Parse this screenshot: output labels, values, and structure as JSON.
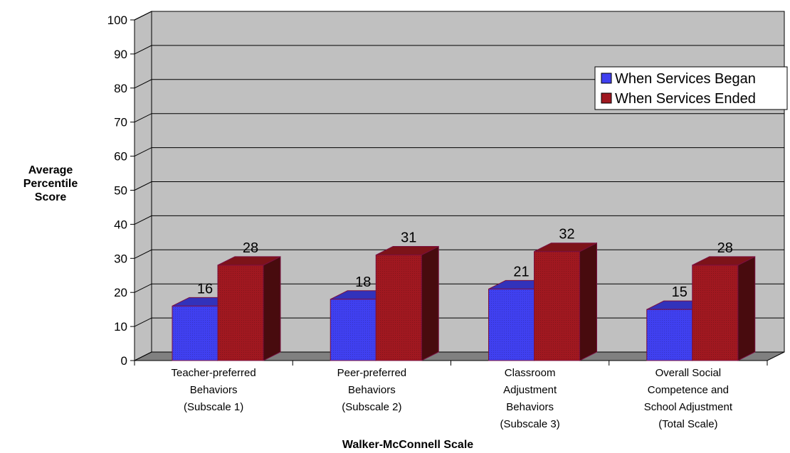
{
  "chart_data": {
    "type": "bar",
    "style": "3d-clustered-column",
    "categories": [
      [
        "Teacher-preferred",
        "Behaviors",
        "(Subscale 1)"
      ],
      [
        "Peer-preferred",
        "Behaviors",
        "(Subscale 2)"
      ],
      [
        "Classroom",
        "Adjustment",
        "Behaviors",
        "(Subscale 3)"
      ],
      [
        "Overall Social",
        "Competence and",
        "School Adjustment",
        "(Total Scale)"
      ]
    ],
    "series": [
      {
        "name": "When Services Began",
        "values": [
          16,
          18,
          21,
          15
        ],
        "color": "#4040f0"
      },
      {
        "name": "When Services Ended",
        "values": [
          28,
          31,
          32,
          28
        ],
        "color": "#a01820"
      }
    ],
    "title": "",
    "xlabel": "Walker-McConnell Scale",
    "ylabel": [
      "Average",
      "Percentile",
      "Score"
    ],
    "ylim": [
      0,
      100
    ],
    "yticks": [
      0,
      10,
      20,
      30,
      40,
      50,
      60,
      70,
      80,
      90,
      100
    ],
    "grid": true,
    "legend": "top-right",
    "wall_color": "#c0c0c0",
    "floor_color": "#808080"
  }
}
